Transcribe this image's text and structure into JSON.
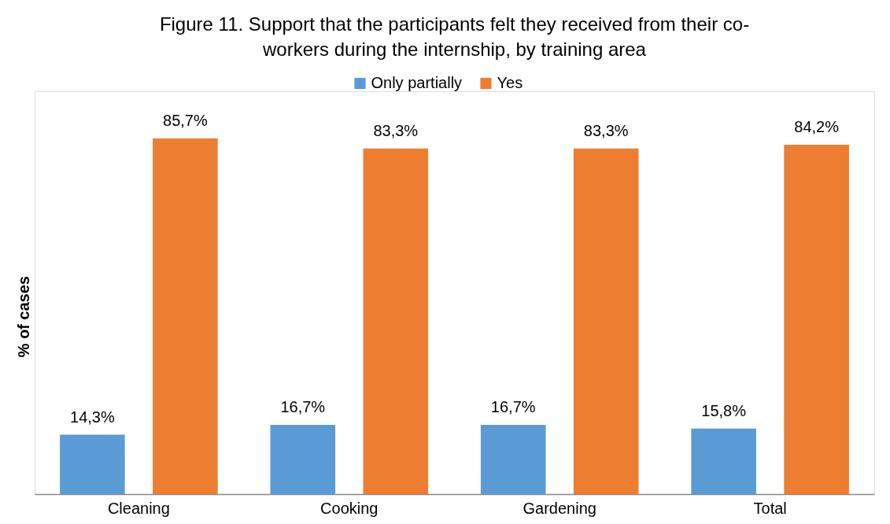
{
  "chart_data": {
    "type": "bar",
    "title": "Figure 11.  Support that the participants felt they received from their co-workers during the internship, by training area",
    "ylabel": "% of cases",
    "categories": [
      "Cleaning",
      "Cooking",
      "Gardening",
      "Total"
    ],
    "series": [
      {
        "name": "Only partially",
        "color": "#5b9bd5",
        "values": [
          14.3,
          16.7,
          16.7,
          15.8
        ],
        "value_labels": [
          "14,3%",
          "16,7%",
          "16,7%",
          "15,8%"
        ]
      },
      {
        "name": "Yes",
        "color": "#ed7d31",
        "values": [
          85.7,
          83.3,
          83.3,
          84.2
        ],
        "value_labels": [
          "85,7%",
          "83,3%",
          "83,3%",
          "84,2%"
        ]
      }
    ],
    "legend": "top",
    "tick_labels": "x"
  }
}
